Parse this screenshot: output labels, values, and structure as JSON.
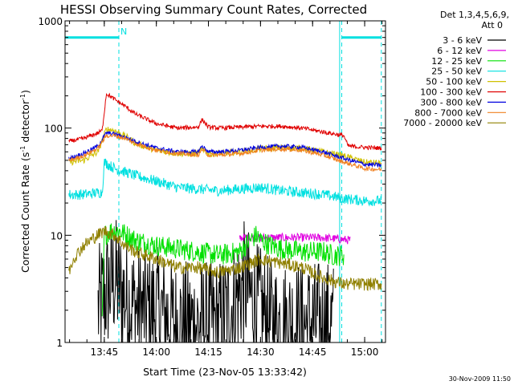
{
  "chart_data": {
    "type": "line",
    "title": "HESSI Observing Summary Count Rates, Corrected",
    "xlabel": "Start Time (23-Nov-05 13:33:42)",
    "ylabel": "Corrected Count Rate (s-1 detector-1)",
    "ylabel_parts": [
      "Corrected Count Rate (s",
      "-1",
      " detector",
      "-1",
      ")"
    ],
    "y_scale": "log",
    "ylim": [
      1,
      1000
    ],
    "xlim": [
      13.5617,
      15.1
    ],
    "x_ticks": [
      {
        "value": 13.75,
        "label": "13:45"
      },
      {
        "value": 14.0,
        "label": "14:00"
      },
      {
        "value": 14.25,
        "label": "14:15"
      },
      {
        "value": 14.5,
        "label": "14:30"
      },
      {
        "value": 14.75,
        "label": "14:45"
      },
      {
        "value": 15.0,
        "label": "15:00"
      }
    ],
    "y_ticks": [
      {
        "value": 1,
        "label": "1"
      },
      {
        "value": 10,
        "label": "10"
      },
      {
        "value": 100,
        "label": "100"
      },
      {
        "value": 1000,
        "label": "1000"
      }
    ],
    "legend_position": "right",
    "legend_header": [
      "Det 1,3,4,5,6,9,",
      "Att 0"
    ],
    "footer": "30-Nov-2009 11:50",
    "annotation_label": "N",
    "markers": {
      "vertical_solid": [
        14.88
      ],
      "vertical_dashed": [
        13.82,
        14.89,
        15.08
      ],
      "night_bars": [
        [
          13.5617,
          13.82
        ],
        [
          14.89,
          15.08
        ]
      ],
      "night_bar_level": 700
    },
    "series": [
      {
        "name": "3 - 6 keV",
        "color": "#000000",
        "noise": 0.6,
        "x": [
          13.72,
          13.76,
          13.8,
          13.83,
          13.86,
          13.92,
          14.0,
          14.1,
          14.2,
          14.3,
          14.38,
          14.42,
          14.46,
          14.5,
          14.55,
          14.6,
          14.65,
          14.7,
          14.75,
          14.8,
          14.85
        ],
        "y": [
          2,
          3,
          4,
          3,
          2.5,
          2,
          2,
          1.5,
          1.5,
          1.5,
          2.5,
          3.5,
          2.5,
          2,
          1.5,
          1.5,
          1.5,
          1.5,
          1.5,
          1.5,
          1.5
        ]
      },
      {
        "name": "6 - 12 keV",
        "color": "#e000e0",
        "noise": 0.04,
        "x": [
          14.4,
          14.5,
          14.6,
          14.7,
          14.8,
          14.93
        ],
        "y": [
          9.5,
          9.5,
          9.5,
          9.5,
          9.5,
          9.0
        ]
      },
      {
        "name": "12 - 25 keV",
        "color": "#00e000",
        "noise": 0.1,
        "x": [
          13.74,
          13.75,
          13.78,
          13.82,
          13.86,
          13.9,
          14.0,
          14.1,
          14.2,
          14.3,
          14.4,
          14.45,
          14.48,
          14.5,
          14.55,
          14.6,
          14.7,
          14.8,
          14.85,
          14.9
        ],
        "y": [
          1.5,
          10,
          11,
          11,
          10,
          9,
          8,
          7.5,
          7,
          6.5,
          7,
          9,
          10,
          9,
          8,
          7.5,
          7,
          7,
          6.5,
          6.5
        ]
      },
      {
        "name": "25 - 50 keV",
        "color": "#00e0e0",
        "noise": 0.05,
        "x": [
          13.58,
          13.65,
          13.72,
          13.74,
          13.75,
          13.8,
          13.9,
          14.0,
          14.1,
          14.2,
          14.3,
          14.4,
          14.5,
          14.6,
          14.7,
          14.8,
          14.9,
          15.0,
          15.08
        ],
        "y": [
          24,
          24,
          25,
          25,
          48,
          42,
          36,
          32,
          28,
          27,
          26,
          27,
          28,
          26,
          25,
          24,
          22,
          21,
          21
        ]
      },
      {
        "name": "50 - 100 keV",
        "color": "#d0c000",
        "noise": 0.03,
        "x": [
          13.58,
          13.65,
          13.72,
          13.76,
          13.8,
          13.86,
          13.9,
          14.0,
          14.1,
          14.2,
          14.22,
          14.25,
          14.3,
          14.4,
          14.5,
          14.6,
          14.7,
          14.8,
          14.9,
          15.0,
          15.08
        ],
        "y": [
          48,
          50,
          60,
          98,
          95,
          82,
          72,
          62,
          58,
          58,
          65,
          58,
          58,
          60,
          64,
          66,
          65,
          60,
          55,
          48,
          47
        ]
      },
      {
        "name": "100 - 300 keV",
        "color": "#e00000",
        "noise": 0.02,
        "x": [
          13.58,
          13.65,
          13.72,
          13.74,
          13.76,
          13.8,
          13.85,
          13.9,
          14.0,
          14.1,
          14.2,
          14.22,
          14.25,
          14.3,
          14.4,
          14.5,
          14.6,
          14.7,
          14.8,
          14.9,
          14.92,
          15.0,
          15.08
        ],
        "y": [
          75,
          80,
          90,
          95,
          210,
          185,
          160,
          135,
          110,
          100,
          102,
          120,
          102,
          100,
          102,
          104,
          104,
          100,
          92,
          85,
          68,
          66,
          65
        ]
      },
      {
        "name": "300 - 800 keV",
        "color": "#0000e0",
        "noise": 0.02,
        "x": [
          13.58,
          13.65,
          13.72,
          13.76,
          13.8,
          13.85,
          13.9,
          14.0,
          14.1,
          14.2,
          14.22,
          14.25,
          14.3,
          14.4,
          14.5,
          14.6,
          14.7,
          14.8,
          14.9,
          15.0,
          15.08
        ],
        "y": [
          52,
          58,
          68,
          90,
          88,
          82,
          75,
          65,
          60,
          60,
          68,
          60,
          60,
          62,
          66,
          68,
          66,
          60,
          52,
          46,
          45
        ]
      },
      {
        "name": "800 - 7000 keV",
        "color": "#f08020",
        "noise": 0.02,
        "x": [
          13.58,
          13.65,
          13.72,
          13.76,
          13.8,
          13.85,
          13.9,
          14.0,
          14.1,
          14.2,
          14.22,
          14.25,
          14.3,
          14.4,
          14.5,
          14.6,
          14.7,
          14.8,
          14.9,
          15.0,
          15.08
        ],
        "y": [
          50,
          55,
          65,
          85,
          85,
          80,
          72,
          62,
          58,
          56,
          63,
          56,
          56,
          58,
          62,
          64,
          62,
          56,
          48,
          42,
          41
        ]
      },
      {
        "name": "7000 - 20000 keV",
        "color": "#908000",
        "noise": 0.06,
        "x": [
          13.58,
          13.6,
          13.65,
          13.7,
          13.75,
          13.8,
          13.85,
          13.9,
          14.0,
          14.1,
          14.2,
          14.3,
          14.4,
          14.5,
          14.6,
          14.7,
          14.8,
          14.9,
          15.0,
          15.08
        ],
        "y": [
          4.5,
          6,
          8,
          9.5,
          11,
          10,
          8,
          7,
          6,
          5,
          5,
          4.5,
          5,
          6,
          5.5,
          5,
          4,
          3.5,
          3.5,
          3.5
        ]
      }
    ]
  }
}
